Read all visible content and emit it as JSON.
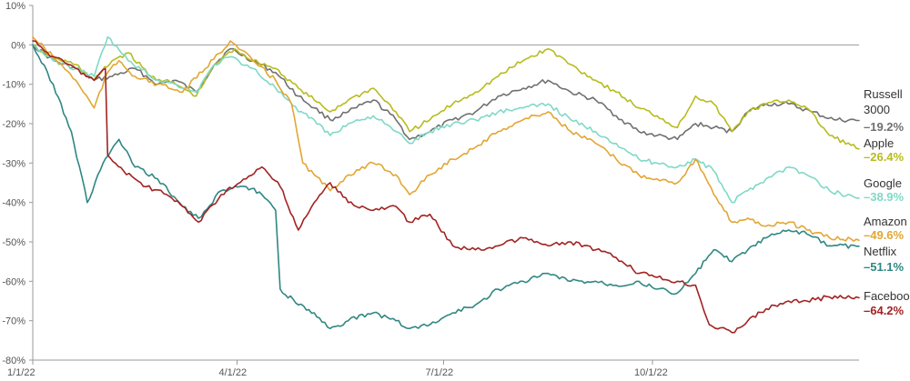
{
  "chart_data": {
    "type": "line",
    "title": "",
    "xlabel": "",
    "ylabel": "",
    "grid": false,
    "legend_placement": "right",
    "x_range": [
      "2022-01-01",
      "2022-12-31"
    ],
    "y_range": [
      -80,
      10
    ],
    "y_ticks": [
      {
        "value": 10,
        "label": "10%"
      },
      {
        "value": 0,
        "label": "0%"
      },
      {
        "value": -10,
        "label": "-10%"
      },
      {
        "value": -20,
        "label": "-20%"
      },
      {
        "value": -30,
        "label": "-30%"
      },
      {
        "value": -40,
        "label": "-40%"
      },
      {
        "value": -50,
        "label": "-50%"
      },
      {
        "value": -60,
        "label": "-60%"
      },
      {
        "value": -70,
        "label": "-70%"
      },
      {
        "value": -80,
        "label": "-80%"
      }
    ],
    "x_ticks": [
      {
        "value": "2022-01-01",
        "label": "1/1/22"
      },
      {
        "value": "2022-04-01",
        "label": "4/1/22"
      },
      {
        "value": "2022-07-01",
        "label": "7/1/22"
      },
      {
        "value": "2022-10-01",
        "label": "10/1/22"
      }
    ],
    "series": [
      {
        "name": "Russell 3000",
        "name_lines": [
          "Russell",
          "3000"
        ],
        "final_label": "–19.2%",
        "color": "#707070",
        "points": [
          [
            "2022-01-01",
            0
          ],
          [
            "2022-01-10",
            -4
          ],
          [
            "2022-01-20",
            -6
          ],
          [
            "2022-01-28",
            -9
          ],
          [
            "2022-02-05",
            -8
          ],
          [
            "2022-02-15",
            -6
          ],
          [
            "2022-02-25",
            -10
          ],
          [
            "2022-03-05",
            -9
          ],
          [
            "2022-03-14",
            -12
          ],
          [
            "2022-03-22",
            -5
          ],
          [
            "2022-03-29",
            -1
          ],
          [
            "2022-04-08",
            -4
          ],
          [
            "2022-04-18",
            -7
          ],
          [
            "2022-04-28",
            -13
          ],
          [
            "2022-05-05",
            -16
          ],
          [
            "2022-05-12",
            -19
          ],
          [
            "2022-05-20",
            -17
          ],
          [
            "2022-05-31",
            -14
          ],
          [
            "2022-06-10",
            -19
          ],
          [
            "2022-06-16",
            -24
          ],
          [
            "2022-06-25",
            -22
          ],
          [
            "2022-07-05",
            -19
          ],
          [
            "2022-07-15",
            -17
          ],
          [
            "2022-07-25",
            -13
          ],
          [
            "2022-08-05",
            -11
          ],
          [
            "2022-08-16",
            -9
          ],
          [
            "2022-08-26",
            -12
          ],
          [
            "2022-09-06",
            -14
          ],
          [
            "2022-09-15",
            -18
          ],
          [
            "2022-09-25",
            -22
          ],
          [
            "2022-10-03",
            -23
          ],
          [
            "2022-10-12",
            -24
          ],
          [
            "2022-10-20",
            -20
          ],
          [
            "2022-10-28",
            -21
          ],
          [
            "2022-11-05",
            -22
          ],
          [
            "2022-11-12",
            -17
          ],
          [
            "2022-11-20",
            -15
          ],
          [
            "2022-11-30",
            -15
          ],
          [
            "2022-12-10",
            -17
          ],
          [
            "2022-12-20",
            -19
          ],
          [
            "2022-12-31",
            -19.2
          ]
        ]
      },
      {
        "name": "Apple",
        "name_lines": [
          "Apple"
        ],
        "final_label": "–26.4%",
        "color": "#b8bb1e",
        "points": [
          [
            "2022-01-01",
            0
          ],
          [
            "2022-01-08",
            -3
          ],
          [
            "2022-01-20",
            -5
          ],
          [
            "2022-01-28",
            -9
          ],
          [
            "2022-02-05",
            -4
          ],
          [
            "2022-02-12",
            -2
          ],
          [
            "2022-02-22",
            -8
          ],
          [
            "2022-03-05",
            -10
          ],
          [
            "2022-03-14",
            -13
          ],
          [
            "2022-03-22",
            -5
          ],
          [
            "2022-03-31",
            -1
          ],
          [
            "2022-04-08",
            -4
          ],
          [
            "2022-04-18",
            -6
          ],
          [
            "2022-04-28",
            -11
          ],
          [
            "2022-05-05",
            -14
          ],
          [
            "2022-05-12",
            -17
          ],
          [
            "2022-05-20",
            -14
          ],
          [
            "2022-05-31",
            -11
          ],
          [
            "2022-06-10",
            -17
          ],
          [
            "2022-06-16",
            -22
          ],
          [
            "2022-06-25",
            -19
          ],
          [
            "2022-07-05",
            -15
          ],
          [
            "2022-07-15",
            -12
          ],
          [
            "2022-07-25",
            -8
          ],
          [
            "2022-08-05",
            -4
          ],
          [
            "2022-08-16",
            -1
          ],
          [
            "2022-08-26",
            -5
          ],
          [
            "2022-09-06",
            -9
          ],
          [
            "2022-09-15",
            -12
          ],
          [
            "2022-09-25",
            -16
          ],
          [
            "2022-10-03",
            -18
          ],
          [
            "2022-10-12",
            -21
          ],
          [
            "2022-10-20",
            -13
          ],
          [
            "2022-10-28",
            -15
          ],
          [
            "2022-11-05",
            -22
          ],
          [
            "2022-11-12",
            -17
          ],
          [
            "2022-11-20",
            -15
          ],
          [
            "2022-11-30",
            -14
          ],
          [
            "2022-12-08",
            -16
          ],
          [
            "2022-12-18",
            -23
          ],
          [
            "2022-12-31",
            -26.4
          ]
        ]
      },
      {
        "name": "Google",
        "name_lines": [
          "Google"
        ],
        "final_label": "–38.9%",
        "color": "#7fd9c6",
        "points": [
          [
            "2022-01-01",
            0
          ],
          [
            "2022-01-10",
            -4
          ],
          [
            "2022-01-20",
            -6
          ],
          [
            "2022-01-28",
            -8
          ],
          [
            "2022-02-03",
            2
          ],
          [
            "2022-02-12",
            -4
          ],
          [
            "2022-02-25",
            -9
          ],
          [
            "2022-03-05",
            -10
          ],
          [
            "2022-03-14",
            -12
          ],
          [
            "2022-03-22",
            -5
          ],
          [
            "2022-03-29",
            -3
          ],
          [
            "2022-04-08",
            -6
          ],
          [
            "2022-04-18",
            -11
          ],
          [
            "2022-04-28",
            -17
          ],
          [
            "2022-05-05",
            -19
          ],
          [
            "2022-05-12",
            -23
          ],
          [
            "2022-05-20",
            -20
          ],
          [
            "2022-05-31",
            -18
          ],
          [
            "2022-06-10",
            -22
          ],
          [
            "2022-06-16",
            -25
          ],
          [
            "2022-06-25",
            -22
          ],
          [
            "2022-07-05",
            -20
          ],
          [
            "2022-07-15",
            -19
          ],
          [
            "2022-07-25",
            -17
          ],
          [
            "2022-08-05",
            -16
          ],
          [
            "2022-08-16",
            -15
          ],
          [
            "2022-08-26",
            -19
          ],
          [
            "2022-09-06",
            -22
          ],
          [
            "2022-09-15",
            -25
          ],
          [
            "2022-09-25",
            -29
          ],
          [
            "2022-10-03",
            -30
          ],
          [
            "2022-10-12",
            -31
          ],
          [
            "2022-10-20",
            -29
          ],
          [
            "2022-10-28",
            -32
          ],
          [
            "2022-11-05",
            -40
          ],
          [
            "2022-11-12",
            -37
          ],
          [
            "2022-11-20",
            -34
          ],
          [
            "2022-11-30",
            -31
          ],
          [
            "2022-12-08",
            -33
          ],
          [
            "2022-12-18",
            -37
          ],
          [
            "2022-12-31",
            -38.9
          ]
        ]
      },
      {
        "name": "Amazon",
        "name_lines": [
          "Amazon"
        ],
        "final_label": "–49.6%",
        "color": "#e2a633",
        "points": [
          [
            "2022-01-01",
            2
          ],
          [
            "2022-01-10",
            -3
          ],
          [
            "2022-01-20",
            -9
          ],
          [
            "2022-01-28",
            -16
          ],
          [
            "2022-02-03",
            -7
          ],
          [
            "2022-02-08",
            -4
          ],
          [
            "2022-02-15",
            -8
          ],
          [
            "2022-02-25",
            -10
          ],
          [
            "2022-03-08",
            -12
          ],
          [
            "2022-03-18",
            -6
          ],
          [
            "2022-03-29",
            1
          ],
          [
            "2022-04-08",
            -4
          ],
          [
            "2022-04-18",
            -9
          ],
          [
            "2022-04-25",
            -15
          ],
          [
            "2022-04-30",
            -30
          ],
          [
            "2022-05-05",
            -33
          ],
          [
            "2022-05-12",
            -37
          ],
          [
            "2022-05-20",
            -33
          ],
          [
            "2022-05-31",
            -30
          ],
          [
            "2022-06-10",
            -33
          ],
          [
            "2022-06-16",
            -38
          ],
          [
            "2022-06-25",
            -33
          ],
          [
            "2022-07-05",
            -29
          ],
          [
            "2022-07-15",
            -26
          ],
          [
            "2022-07-25",
            -22
          ],
          [
            "2022-08-05",
            -19
          ],
          [
            "2022-08-16",
            -17
          ],
          [
            "2022-08-26",
            -22
          ],
          [
            "2022-09-06",
            -25
          ],
          [
            "2022-09-15",
            -29
          ],
          [
            "2022-09-25",
            -33
          ],
          [
            "2022-10-03",
            -34
          ],
          [
            "2022-10-12",
            -35
          ],
          [
            "2022-10-20",
            -29
          ],
          [
            "2022-10-28",
            -38
          ],
          [
            "2022-11-05",
            -45
          ],
          [
            "2022-11-12",
            -44
          ],
          [
            "2022-11-20",
            -46
          ],
          [
            "2022-11-30",
            -45
          ],
          [
            "2022-12-08",
            -47
          ],
          [
            "2022-12-18",
            -49
          ],
          [
            "2022-12-31",
            -49.6
          ]
        ]
      },
      {
        "name": "Netflix",
        "name_lines": [
          "Netflix"
        ],
        "final_label": "–51.1%",
        "color": "#2f8782",
        "points": [
          [
            "2022-01-01",
            0
          ],
          [
            "2022-01-10",
            -10
          ],
          [
            "2022-01-18",
            -22
          ],
          [
            "2022-01-25",
            -40
          ],
          [
            "2022-02-01",
            -30
          ],
          [
            "2022-02-08",
            -24
          ],
          [
            "2022-02-15",
            -31
          ],
          [
            "2022-02-25",
            -34
          ],
          [
            "2022-03-08",
            -41
          ],
          [
            "2022-03-15",
            -44
          ],
          [
            "2022-03-25",
            -37
          ],
          [
            "2022-04-05",
            -36
          ],
          [
            "2022-04-12",
            -38
          ],
          [
            "2022-04-18",
            -42
          ],
          [
            "2022-04-20",
            -62
          ],
          [
            "2022-04-28",
            -66
          ],
          [
            "2022-05-05",
            -68
          ],
          [
            "2022-05-12",
            -72
          ],
          [
            "2022-05-20",
            -70
          ],
          [
            "2022-05-31",
            -68
          ],
          [
            "2022-06-10",
            -70
          ],
          [
            "2022-06-16",
            -72
          ],
          [
            "2022-06-25",
            -71
          ],
          [
            "2022-07-05",
            -68
          ],
          [
            "2022-07-15",
            -66
          ],
          [
            "2022-07-25",
            -62
          ],
          [
            "2022-08-05",
            -60
          ],
          [
            "2022-08-16",
            -58
          ],
          [
            "2022-08-26",
            -60
          ],
          [
            "2022-09-06",
            -60
          ],
          [
            "2022-09-15",
            -61
          ],
          [
            "2022-09-25",
            -60
          ],
          [
            "2022-10-03",
            -62
          ],
          [
            "2022-10-12",
            -63
          ],
          [
            "2022-10-20",
            -58
          ],
          [
            "2022-10-28",
            -52
          ],
          [
            "2022-11-05",
            -55
          ],
          [
            "2022-11-12",
            -52
          ],
          [
            "2022-11-20",
            -49
          ],
          [
            "2022-11-30",
            -47
          ],
          [
            "2022-12-08",
            -48
          ],
          [
            "2022-12-18",
            -51
          ],
          [
            "2022-12-31",
            -51.1
          ]
        ]
      },
      {
        "name": "Facebook",
        "name_lines": [
          "Facebook"
        ],
        "final_label": "–64.2%",
        "color": "#a32222",
        "points": [
          [
            "2022-01-01",
            1
          ],
          [
            "2022-01-10",
            -3
          ],
          [
            "2022-01-20",
            -6
          ],
          [
            "2022-01-28",
            -9
          ],
          [
            "2022-02-02",
            -6
          ],
          [
            "2022-02-03",
            -28
          ],
          [
            "2022-02-10",
            -32
          ],
          [
            "2022-02-20",
            -36
          ],
          [
            "2022-03-01",
            -38
          ],
          [
            "2022-03-08",
            -41
          ],
          [
            "2022-03-15",
            -45
          ],
          [
            "2022-03-25",
            -38
          ],
          [
            "2022-04-05",
            -34
          ],
          [
            "2022-04-12",
            -31
          ],
          [
            "2022-04-20",
            -36
          ],
          [
            "2022-04-28",
            -47
          ],
          [
            "2022-05-05",
            -40
          ],
          [
            "2022-05-12",
            -35
          ],
          [
            "2022-05-20",
            -40
          ],
          [
            "2022-05-31",
            -42
          ],
          [
            "2022-06-10",
            -41
          ],
          [
            "2022-06-16",
            -45
          ],
          [
            "2022-06-25",
            -43
          ],
          [
            "2022-07-05",
            -51
          ],
          [
            "2022-07-15",
            -52
          ],
          [
            "2022-07-25",
            -51
          ],
          [
            "2022-08-05",
            -49
          ],
          [
            "2022-08-16",
            -51
          ],
          [
            "2022-08-26",
            -50
          ],
          [
            "2022-09-06",
            -52
          ],
          [
            "2022-09-15",
            -54
          ],
          [
            "2022-09-25",
            -58
          ],
          [
            "2022-10-03",
            -59
          ],
          [
            "2022-10-12",
            -60
          ],
          [
            "2022-10-20",
            -61
          ],
          [
            "2022-10-26",
            -71
          ],
          [
            "2022-11-05",
            -73
          ],
          [
            "2022-11-12",
            -70
          ],
          [
            "2022-11-20",
            -67
          ],
          [
            "2022-11-30",
            -65
          ],
          [
            "2022-12-08",
            -65
          ],
          [
            "2022-12-18",
            -64
          ],
          [
            "2022-12-31",
            -64.2
          ]
        ]
      }
    ]
  }
}
